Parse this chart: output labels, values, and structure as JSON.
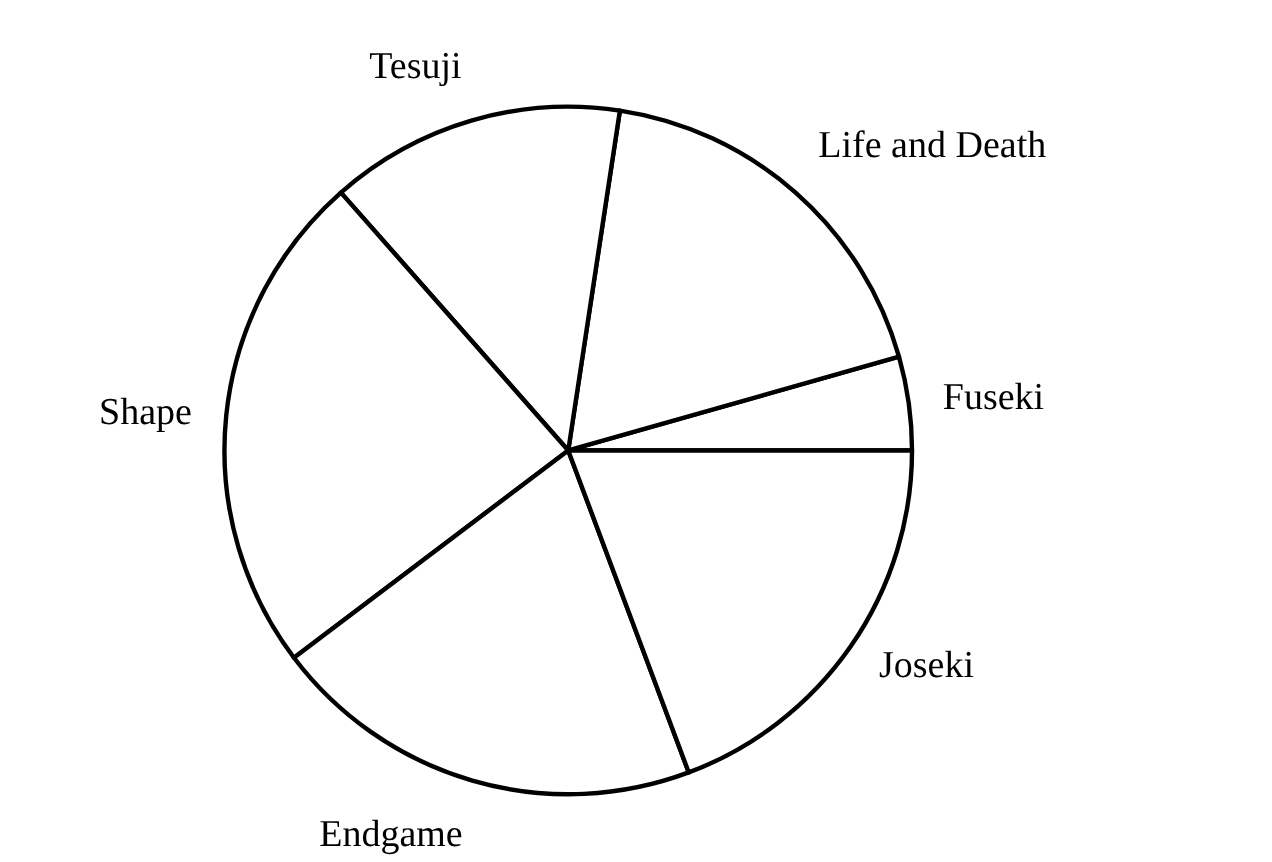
{
  "chart_data": {
    "type": "pie",
    "categories": [
      "Fuseki",
      "Life and Death",
      "Tesuji",
      "Shape",
      "Endgame",
      "Joseki"
    ],
    "values": [
      4.4,
      18.2,
      13.9,
      23.8,
      20.4,
      19.3
    ],
    "colors": [
      "#ffffff",
      "#ffffff",
      "#ffffff",
      "#ffffff",
      "#ffffff",
      "#ffffff"
    ]
  }
}
